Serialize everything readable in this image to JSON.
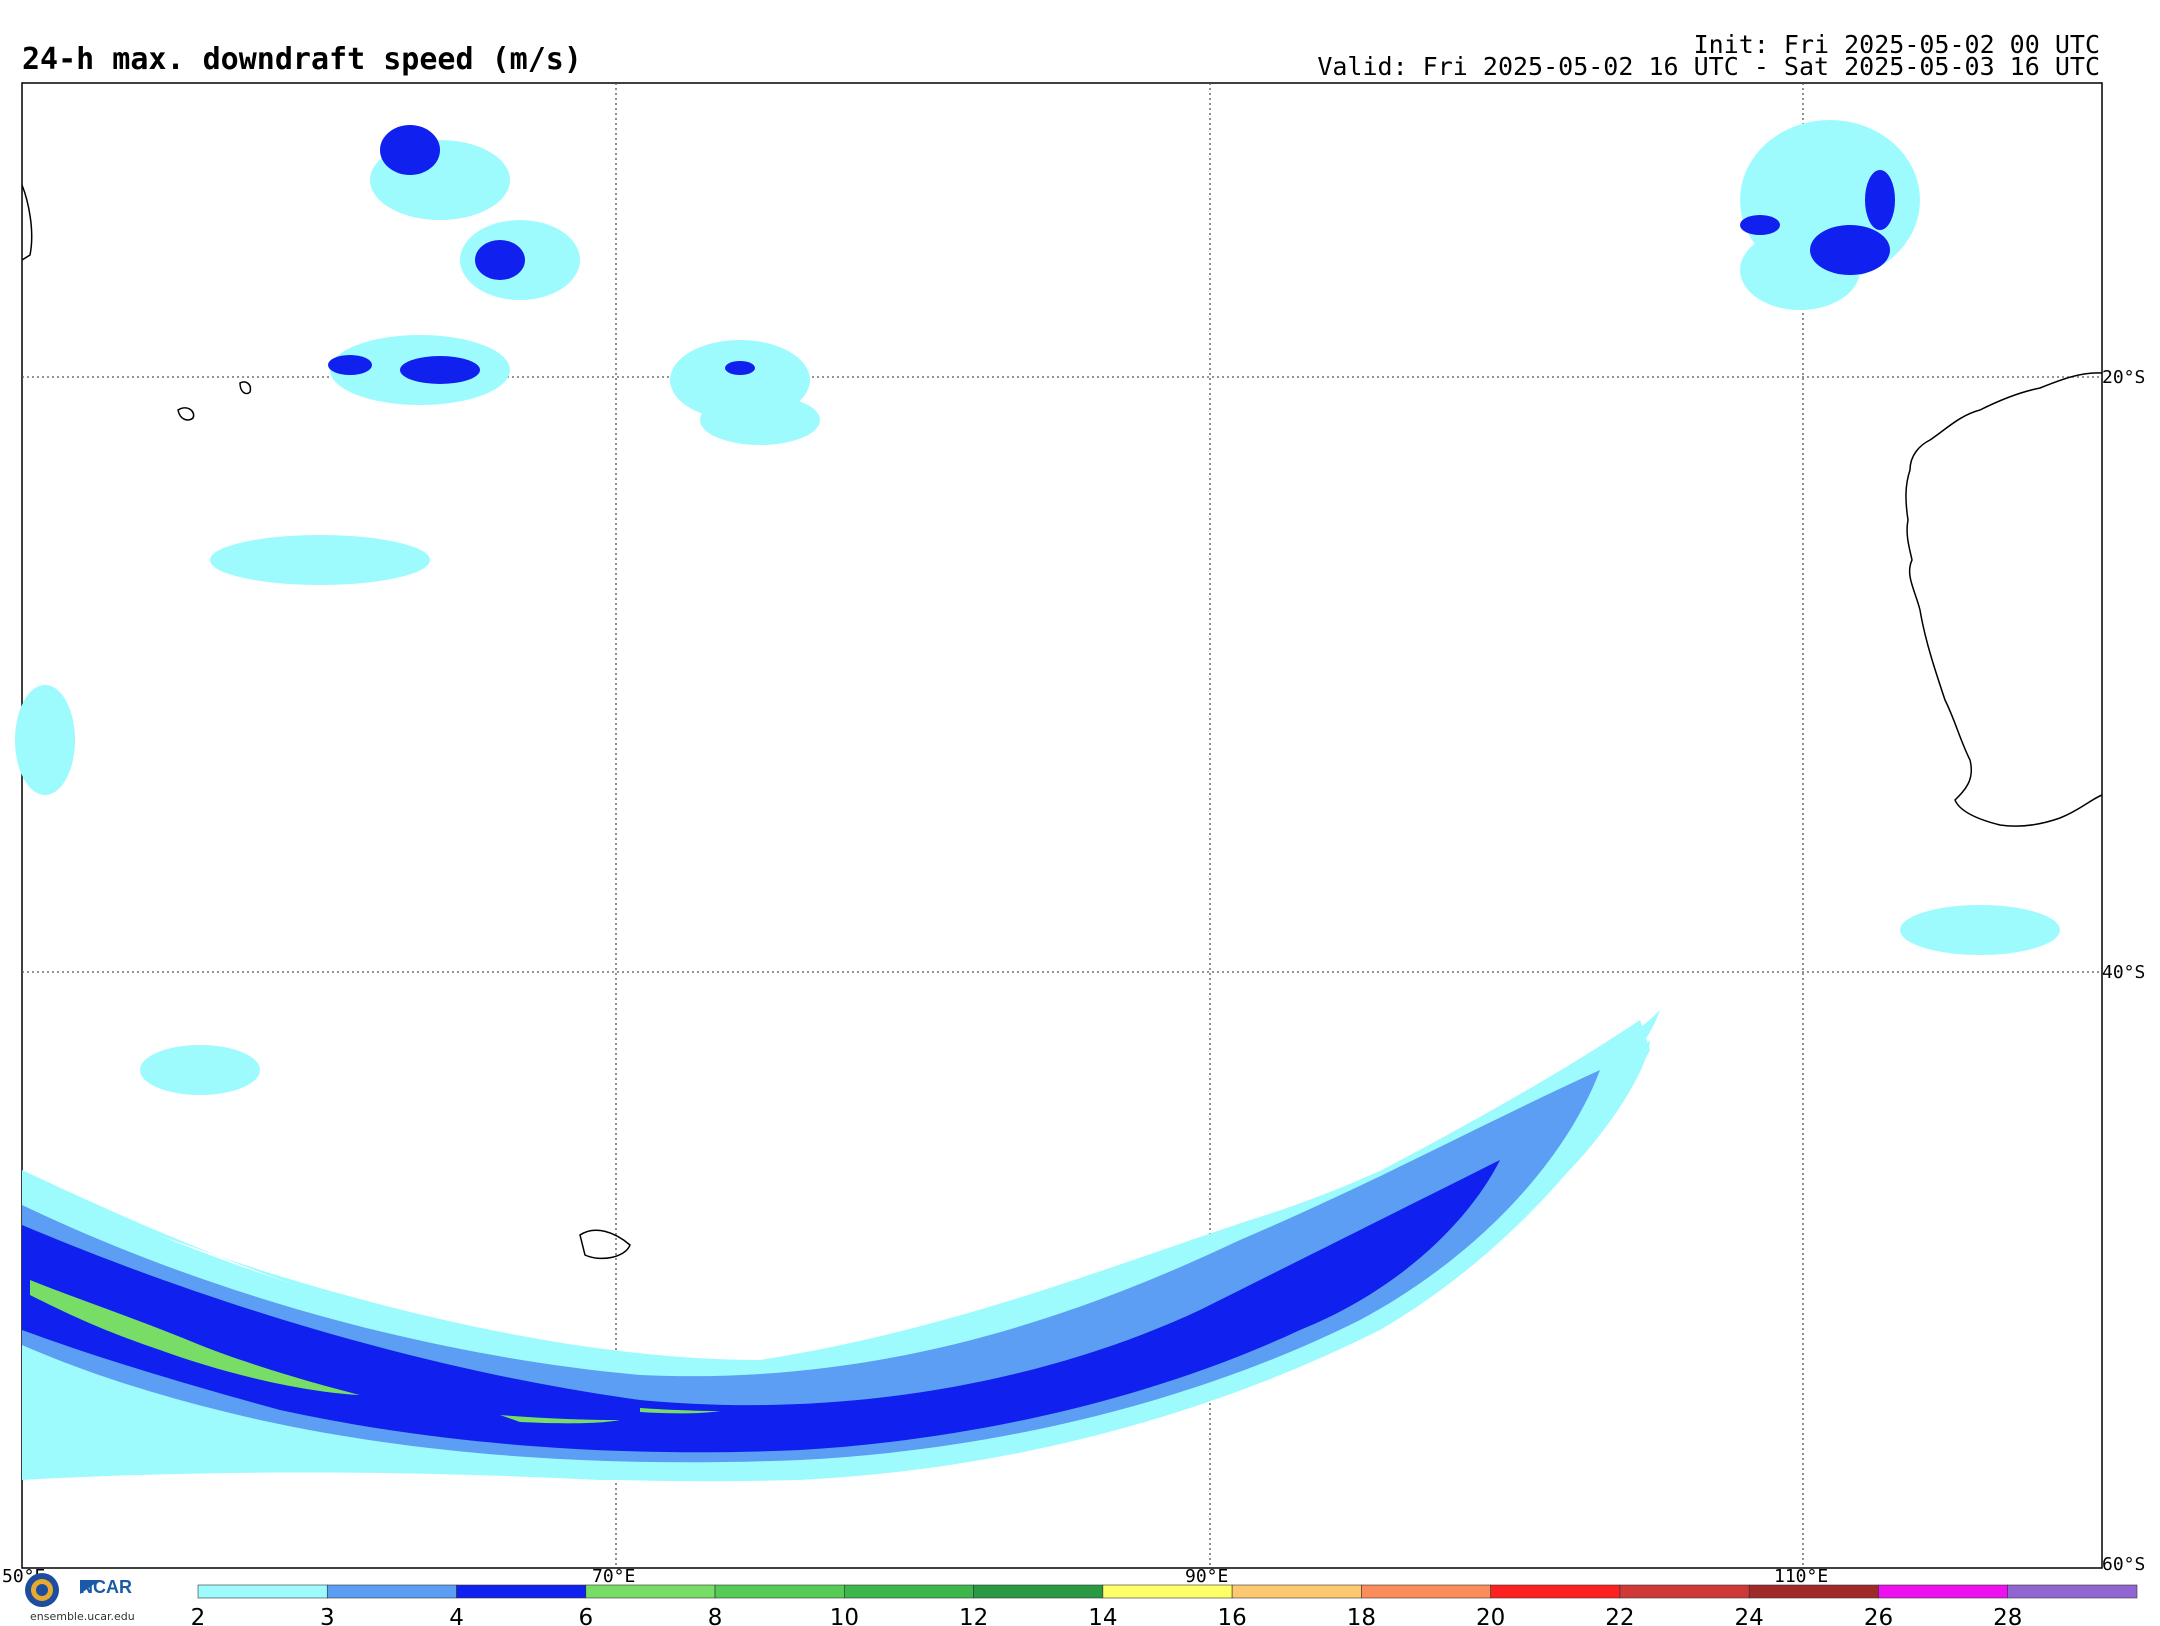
{
  "header": {
    "title": "24-h max. downdraft speed (m/s)",
    "init": "Init: Fri 2025-05-02 00 UTC",
    "valid": "Valid: Fri 2025-05-02 16 UTC - Sat 2025-05-03 16 UTC"
  },
  "map": {
    "lon_labels": [
      "50°E",
      "70°E",
      "90°E",
      "110°E"
    ],
    "lat_labels": [
      "20°S",
      "40°S",
      "60°S"
    ]
  },
  "colorbar": {
    "ticks": [
      "2",
      "3",
      "4",
      "6",
      "8",
      "10",
      "12",
      "14",
      "16",
      "18",
      "20",
      "22",
      "24",
      "26",
      "28"
    ],
    "colors": [
      "#9dfbfe",
      "#5b9ef4",
      "#1020ee",
      "#77dd66",
      "#55cc55",
      "#3db64a",
      "#2a9944",
      "#fefe66",
      "#fcc870",
      "#fc8c5a",
      "#fc2020",
      "#d03838",
      "#a02a2a",
      "#ee10ee",
      "#9166d3"
    ]
  },
  "logo": {
    "org": "NCAR",
    "url": "ensemble.ucar.edu"
  }
}
